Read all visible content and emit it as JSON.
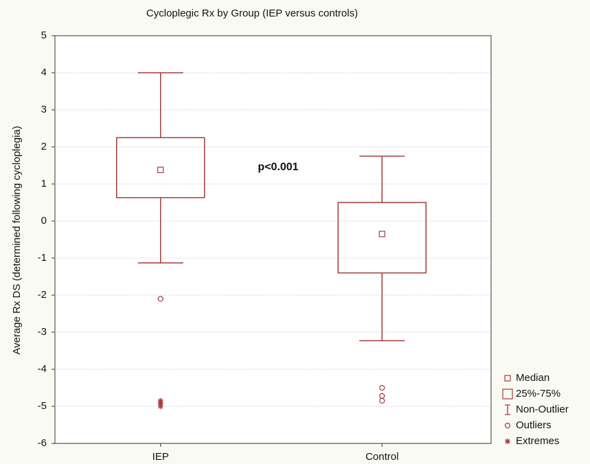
{
  "chart_data": {
    "type": "box",
    "title": "Cycloplegic Rx by Group (IEP versus controls)",
    "y_label": "Average Rx DS (determined following cycloplegia)",
    "annotation": "p<0.001",
    "categories": [
      "IEP",
      "Control"
    ],
    "boxes": [
      {
        "whisker_low": -1.13,
        "q1": 0.63,
        "median": 1.38,
        "q3": 2.25,
        "whisker_high": 4.0,
        "outliers": [
          -2.1
        ],
        "extremes": [
          -4.85,
          -4.92,
          -5.0
        ]
      },
      {
        "whisker_low": -3.23,
        "q1": -1.4,
        "median": -0.35,
        "q3": 0.5,
        "whisker_high": 1.75,
        "outliers": [
          -4.5,
          -4.72,
          -4.85
        ],
        "extremes": []
      }
    ],
    "legend": [
      "Median",
      "25%-75%",
      "Non-Outlier",
      "Outliers",
      "Extremes"
    ],
    "legend_position": "right",
    "color": "#a33a3a",
    "ylim": [
      -6,
      5
    ],
    "yticks": [
      -6,
      -5,
      -4,
      -3,
      -2,
      -1,
      0,
      1,
      2,
      3,
      4,
      5
    ],
    "grid": true
  }
}
